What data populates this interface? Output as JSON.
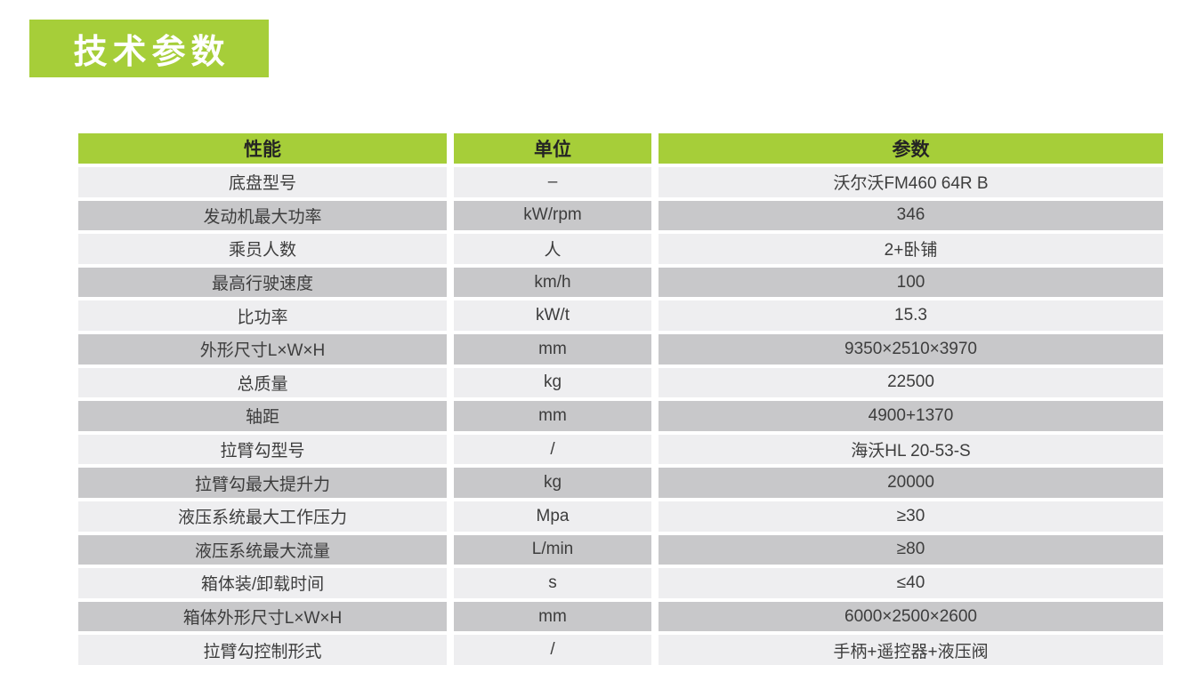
{
  "page": {
    "title": "技术参数"
  },
  "colors": {
    "green": "#a6ce39",
    "row_light": "#eeeef0",
    "row_dark": "#c8c8ca",
    "text": "#3d3d3d",
    "header_text": "#242424",
    "title_text": "#ffffff"
  },
  "table": {
    "columns": [
      "性能",
      "单位",
      "参数"
    ],
    "rows": [
      [
        "底盘型号",
        "–",
        "沃尔沃FM460 64R B"
      ],
      [
        "发动机最大功率",
        "kW/rpm",
        "346"
      ],
      [
        "乘员人数",
        "人",
        "2+卧铺"
      ],
      [
        "最高行驶速度",
        "km/h",
        "100"
      ],
      [
        "比功率",
        "kW/t",
        "15.3"
      ],
      [
        "外形尺寸L×W×H",
        "mm",
        "9350×2510×3970"
      ],
      [
        "总质量",
        "kg",
        "22500"
      ],
      [
        "轴距",
        "mm",
        "4900+1370"
      ],
      [
        "拉臂勾型号",
        "/",
        "海沃HL 20-53-S"
      ],
      [
        "拉臂勾最大提升力",
        "kg",
        "20000"
      ],
      [
        "液压系统最大工作压力",
        "Mpa",
        "≥30"
      ],
      [
        "液压系统最大流量",
        "L/min",
        "≥80"
      ],
      [
        "箱体装/卸载时间",
        "s",
        "≤40"
      ],
      [
        "箱体外形尺寸L×W×H",
        "mm",
        "6000×2500×2600"
      ],
      [
        "拉臂勾控制形式",
        "/",
        "手柄+遥控器+液压阀"
      ]
    ]
  }
}
